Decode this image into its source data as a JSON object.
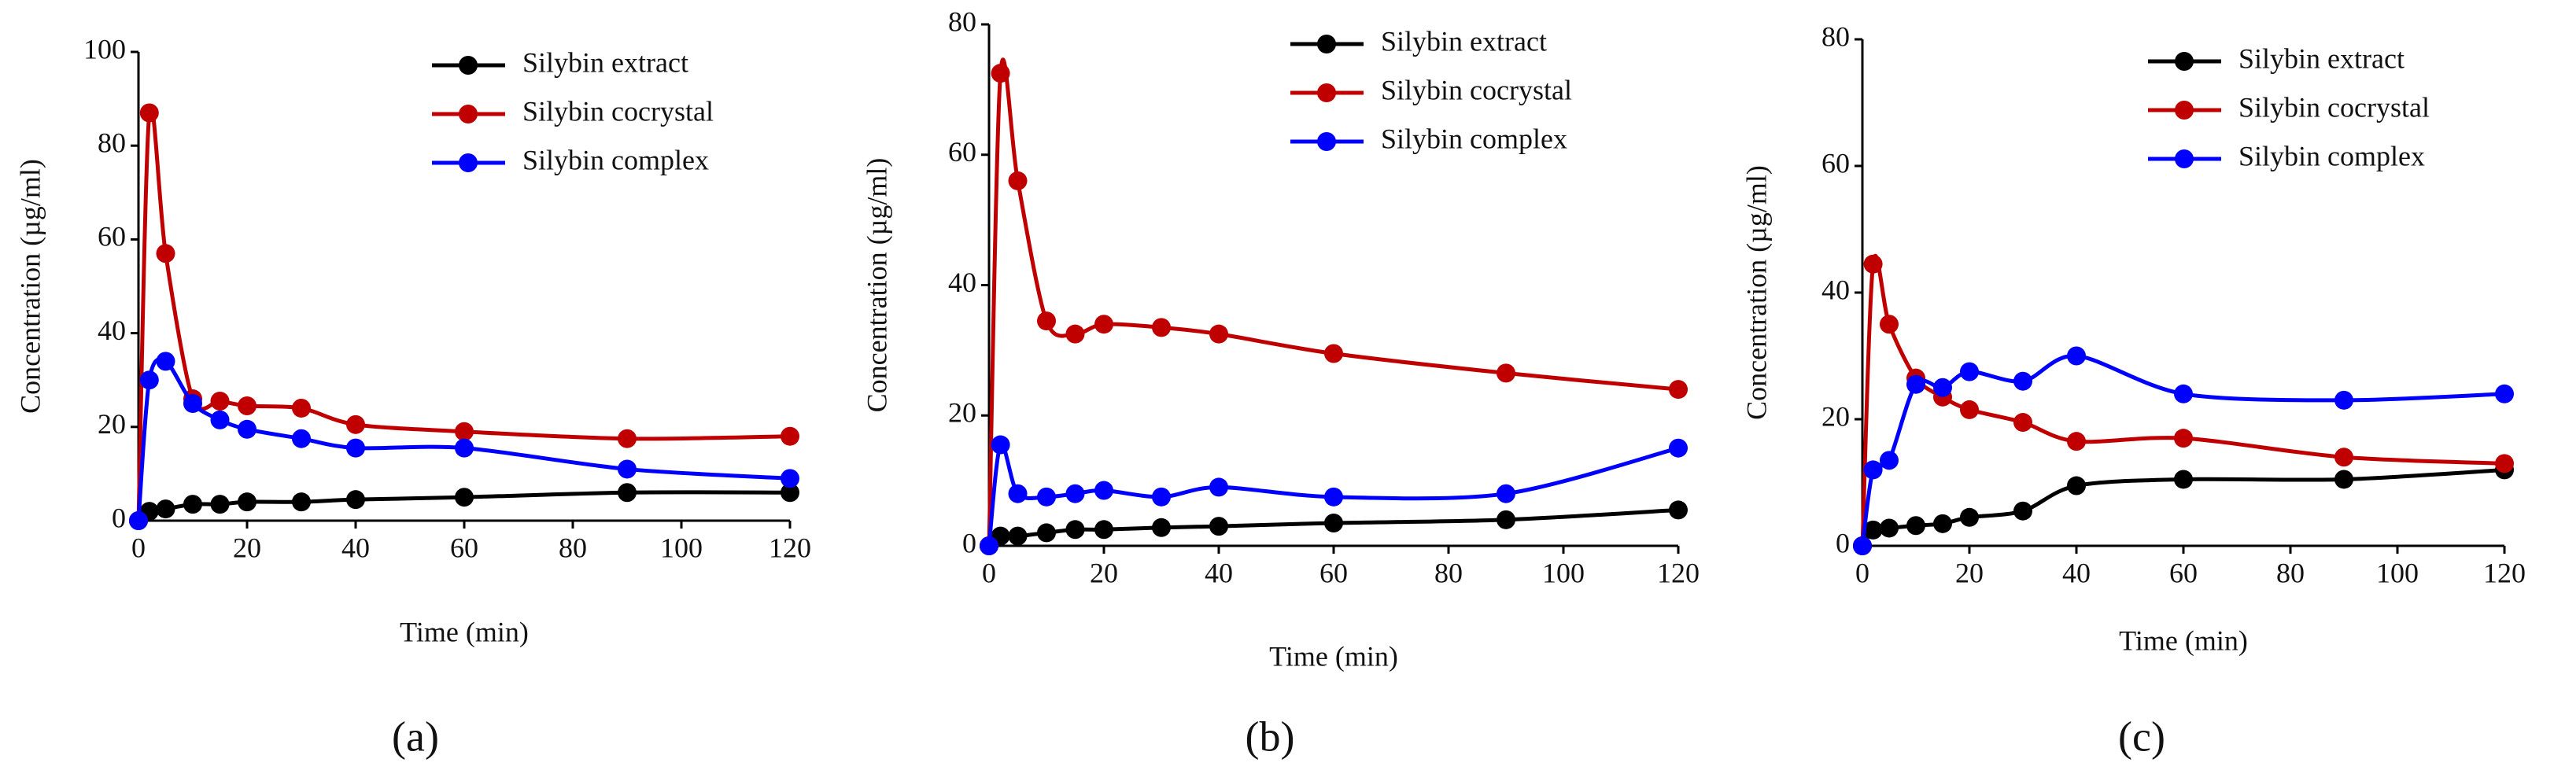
{
  "chart_data": [
    {
      "type": "line",
      "panel_label": "(a)",
      "x_label": "Time (min)",
      "y_label": "Concentration (µg/ml)",
      "x": [
        0,
        2,
        5,
        10,
        15,
        20,
        30,
        40,
        60,
        90,
        120
      ],
      "xlim": [
        0,
        120
      ],
      "xticks": [
        0,
        20,
        40,
        60,
        80,
        100,
        120
      ],
      "ylim": [
        0,
        100
      ],
      "yticks": [
        0,
        20,
        40,
        60,
        80,
        100
      ],
      "series": [
        {
          "name": "Silybin extract",
          "color": "#000000",
          "values": [
            0,
            2,
            2.5,
            3.5,
            3.5,
            4,
            4,
            4.5,
            5,
            6,
            6
          ]
        },
        {
          "name": "Silybin cocrystal",
          "color": "#c00000",
          "values": [
            0,
            87,
            57,
            26,
            25.5,
            24.5,
            24,
            20.5,
            19,
            17.5,
            18
          ]
        },
        {
          "name": "Silybin complex",
          "color": "#0000ff",
          "values": [
            0,
            30,
            34,
            25,
            21.5,
            19.5,
            17.5,
            15.5,
            15.5,
            11,
            9
          ]
        }
      ]
    },
    {
      "type": "line",
      "panel_label": "(b)",
      "x_label": "Time (min)",
      "y_label": "Concentration (µg/ml)",
      "x": [
        0,
        2,
        5,
        10,
        15,
        20,
        30,
        40,
        60,
        90,
        120
      ],
      "xlim": [
        0,
        120
      ],
      "xticks": [
        0,
        20,
        40,
        60,
        80,
        100,
        120
      ],
      "ylim": [
        0,
        80
      ],
      "yticks": [
        0,
        20,
        40,
        60,
        80
      ],
      "series": [
        {
          "name": "Silybin extract",
          "color": "#000000",
          "values": [
            0,
            1.5,
            1.5,
            2,
            2.5,
            2.5,
            2.8,
            3,
            3.5,
            4,
            5.5
          ]
        },
        {
          "name": "Silybin cocrystal",
          "color": "#c00000",
          "values": [
            0,
            72.5,
            56,
            34.5,
            32.5,
            34,
            33.5,
            32.5,
            29.5,
            26.5,
            24
          ]
        },
        {
          "name": "Silybin complex",
          "color": "#0000ff",
          "values": [
            0,
            15.5,
            8,
            7.5,
            8,
            8.5,
            7.5,
            9,
            7.5,
            8,
            15
          ]
        }
      ]
    },
    {
      "type": "line",
      "panel_label": "(c)",
      "x_label": "Time (min)",
      "y_label": "Concentration (µg/ml)",
      "x": [
        0,
        2,
        5,
        10,
        15,
        20,
        30,
        40,
        60,
        90,
        120
      ],
      "xlim": [
        0,
        120
      ],
      "xticks": [
        0,
        20,
        40,
        60,
        80,
        100,
        120
      ],
      "ylim": [
        0,
        80
      ],
      "yticks": [
        0,
        20,
        40,
        60,
        80
      ],
      "series": [
        {
          "name": "Silybin extract",
          "color": "#000000",
          "values": [
            0,
            2.5,
            2.8,
            3.2,
            3.5,
            4.5,
            5.5,
            9.5,
            10.5,
            10.5,
            12
          ]
        },
        {
          "name": "Silybin cocrystal",
          "color": "#c00000",
          "values": [
            0,
            44.5,
            35,
            26.5,
            23.5,
            21.5,
            19.5,
            16.5,
            17,
            14,
            13
          ]
        },
        {
          "name": "Silybin complex",
          "color": "#0000ff",
          "values": [
            0,
            12,
            13.5,
            25.5,
            25,
            27.5,
            26,
            30,
            24,
            23,
            24
          ]
        }
      ]
    }
  ]
}
